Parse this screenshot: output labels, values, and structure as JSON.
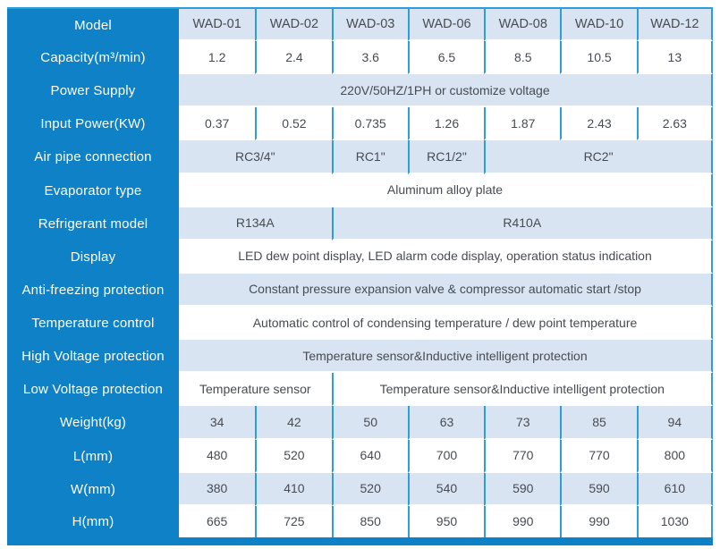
{
  "colors": {
    "panel_blue": "#0f81c6",
    "divider_blue": "#2e9ed9",
    "row_alt_bg": "#d9e4f2",
    "text_dark": "#474b52"
  },
  "table": {
    "rows": [
      {
        "label": "Model",
        "cells": [
          {
            "text": "WAD-01",
            "span": 1
          },
          {
            "text": "WAD-02",
            "span": 1
          },
          {
            "text": "WAD-03",
            "span": 1
          },
          {
            "text": "WAD-06",
            "span": 1
          },
          {
            "text": "WAD-08",
            "span": 1
          },
          {
            "text": "WAD-10",
            "span": 1
          },
          {
            "text": "WAD-12",
            "span": 1
          }
        ]
      },
      {
        "label": "Capacity(m³/min)",
        "cells": [
          {
            "text": "1.2",
            "span": 1
          },
          {
            "text": "2.4",
            "span": 1
          },
          {
            "text": "3.6",
            "span": 1
          },
          {
            "text": "6.5",
            "span": 1
          },
          {
            "text": "8.5",
            "span": 1
          },
          {
            "text": "10.5",
            "span": 1
          },
          {
            "text": "13",
            "span": 1
          }
        ]
      },
      {
        "label": "Power Supply",
        "cells": [
          {
            "text": "220V/50HZ/1PH or customize voltage",
            "span": 7
          }
        ]
      },
      {
        "label": "Input Power(KW)",
        "cells": [
          {
            "text": "0.37",
            "span": 1
          },
          {
            "text": "0.52",
            "span": 1
          },
          {
            "text": "0.735",
            "span": 1
          },
          {
            "text": "1.26",
            "span": 1
          },
          {
            "text": "1.87",
            "span": 1
          },
          {
            "text": "2.43",
            "span": 1
          },
          {
            "text": "2.63",
            "span": 1
          }
        ]
      },
      {
        "label": "Air pipe connection",
        "cells": [
          {
            "text": "RC3/4\"",
            "span": 2
          },
          {
            "text": "RC1\"",
            "span": 1
          },
          {
            "text": "RC1/2\"",
            "span": 1
          },
          {
            "text": "RC2\"",
            "span": 3
          }
        ]
      },
      {
        "label": "Evaporator type",
        "cells": [
          {
            "text": "Aluminum alloy plate",
            "span": 7
          }
        ]
      },
      {
        "label": "Refrigerant model",
        "cells": [
          {
            "text": "R134A",
            "span": 2
          },
          {
            "text": "R410A",
            "span": 5
          }
        ]
      },
      {
        "label": "Display",
        "cells": [
          {
            "text": "LED dew point display, LED alarm code display, operation status indication",
            "span": 7
          }
        ]
      },
      {
        "label": "Anti-freezing protection",
        "cells": [
          {
            "text": "Constant pressure expansion valve & compressor automatic start /stop",
            "span": 7
          }
        ]
      },
      {
        "label": "Temperature control",
        "cells": [
          {
            "text": "Automatic control of condensing temperature / dew point temperature",
            "span": 7
          }
        ]
      },
      {
        "label": "High Voltage protection",
        "cells": [
          {
            "text": "Temperature sensor&Inductive intelligent protection",
            "span": 7
          }
        ]
      },
      {
        "label": "Low Voltage protection",
        "cells": [
          {
            "text": "Temperature sensor",
            "span": 2
          },
          {
            "text": "Temperature sensor&Inductive intelligent protection",
            "span": 5
          }
        ]
      },
      {
        "label": "Weight(kg)",
        "cells": [
          {
            "text": "34",
            "span": 1
          },
          {
            "text": "42",
            "span": 1
          },
          {
            "text": "50",
            "span": 1
          },
          {
            "text": "63",
            "span": 1
          },
          {
            "text": "73",
            "span": 1
          },
          {
            "text": "85",
            "span": 1
          },
          {
            "text": "94",
            "span": 1
          }
        ]
      },
      {
        "label": "L(mm)",
        "cells": [
          {
            "text": "480",
            "span": 1
          },
          {
            "text": "520",
            "span": 1
          },
          {
            "text": "640",
            "span": 1
          },
          {
            "text": "700",
            "span": 1
          },
          {
            "text": "770",
            "span": 1
          },
          {
            "text": "770",
            "span": 1
          },
          {
            "text": "800",
            "span": 1
          }
        ]
      },
      {
        "label": "W(mm)",
        "cells": [
          {
            "text": "380",
            "span": 1
          },
          {
            "text": "410",
            "span": 1
          },
          {
            "text": "520",
            "span": 1
          },
          {
            "text": "540",
            "span": 1
          },
          {
            "text": "590",
            "span": 1
          },
          {
            "text": "590",
            "span": 1
          },
          {
            "text": "610",
            "span": 1
          }
        ]
      },
      {
        "label": "H(mm)",
        "cells": [
          {
            "text": "665",
            "span": 1
          },
          {
            "text": "725",
            "span": 1
          },
          {
            "text": "850",
            "span": 1
          },
          {
            "text": "950",
            "span": 1
          },
          {
            "text": "990",
            "span": 1
          },
          {
            "text": "990",
            "span": 1
          },
          {
            "text": "1030",
            "span": 1
          }
        ]
      }
    ]
  }
}
